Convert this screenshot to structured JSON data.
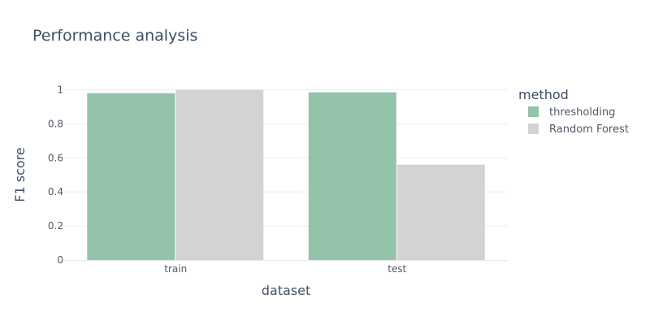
{
  "chart_data": {
    "type": "bar",
    "title": "Performance analysis",
    "xlabel": "dataset",
    "ylabel": "F1 score",
    "categories": [
      "train",
      "test"
    ],
    "ylim": [
      0,
      1.05
    ],
    "yticks": [
      "0",
      "0.2",
      "0.4",
      "0.6",
      "0.8",
      "1"
    ],
    "grid": true,
    "legend": {
      "title": "method",
      "placement": "right"
    },
    "series": [
      {
        "name": "thresholding",
        "color": "#93c3a8",
        "values": [
          0.98,
          0.985
        ]
      },
      {
        "name": "Random Forest",
        "color": "#d3d3d3",
        "values": [
          1.0,
          0.56
        ]
      }
    ]
  }
}
